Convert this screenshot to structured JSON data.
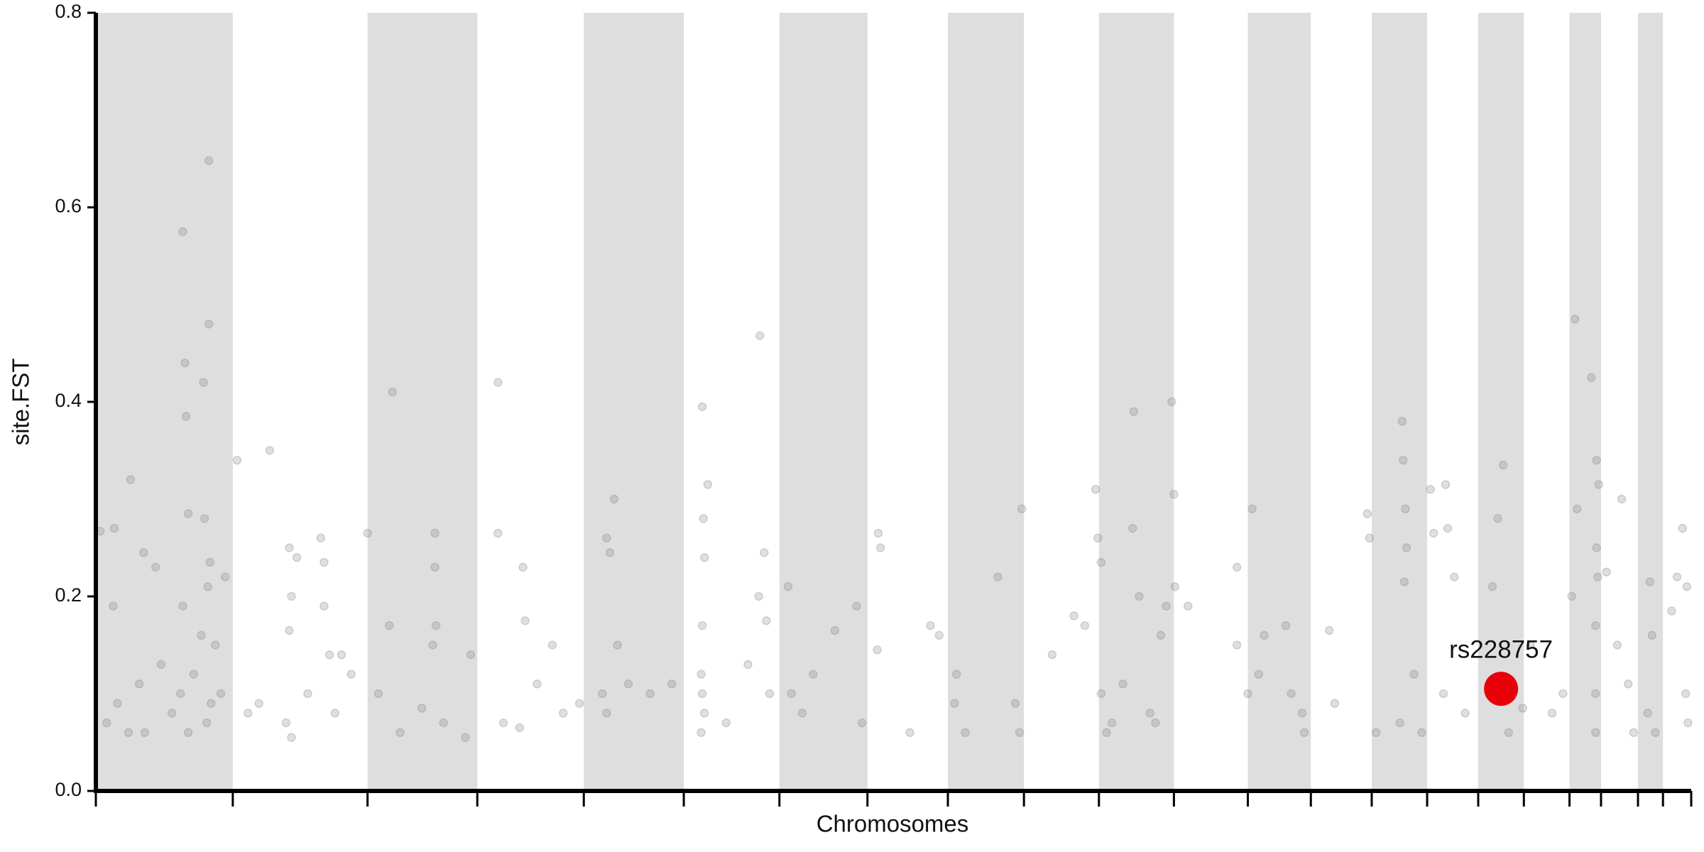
{
  "chart_data": {
    "type": "scatter",
    "xlabel": "Chromosomes",
    "ylabel": "site.FST",
    "xlim": [
      0,
      1468
    ],
    "ylim": [
      0,
      0.8
    ],
    "yticks": [
      {
        "value": 0,
        "label": "0.0"
      },
      0.2,
      0.4,
      0.6,
      0.8
    ],
    "chromosome_bounds": [
      0,
      126,
      250,
      351,
      449,
      541,
      629,
      710,
      784,
      854,
      923,
      992,
      1060,
      1118,
      1174,
      1225,
      1272,
      1314,
      1356,
      1385,
      1419,
      1442,
      1468
    ],
    "band_color": "#dedede",
    "series": [
      {
        "color": "#808080",
        "x": [
          4,
          16,
          17,
          32,
          44,
          55,
          80,
          82,
          83,
          85,
          99,
          100,
          104,
          104,
          105,
          103,
          97,
          80,
          119,
          10,
          20,
          30,
          40,
          45,
          60,
          70,
          78,
          85,
          90,
          102,
          106,
          110,
          115,
          130,
          160,
          178,
          180,
          185,
          178,
          207,
          210,
          210,
          215,
          226,
          140,
          150,
          175,
          180,
          195,
          220,
          235,
          250,
          270,
          273,
          312,
          312,
          313,
          310,
          320,
          345,
          260,
          280,
          300,
          340,
          370,
          370,
          393,
          395,
          406,
          375,
          390,
          420,
          430,
          445,
          470,
          473,
          477,
          480,
          466,
          470,
          490,
          510,
          530,
          558,
          559,
          560,
          563,
          558,
          557,
          558,
          560,
          557,
          580,
          611,
          615,
          617,
          610,
          620,
          600,
          637,
          640,
          650,
          660,
          680,
          700,
          720,
          722,
          719,
          705,
          749,
          768,
          776,
          790,
          792,
          800,
          830,
          852,
          846,
          850,
          880,
          900,
          910,
          920,
          922,
          925,
          925,
          930,
          935,
          945,
          954,
          955,
          960,
          980,
          985,
          990,
          992,
          993,
          970,
          975,
          1005,
          1050,
          1050,
          1060,
          1064,
          1070,
          1075,
          1095,
          1100,
          1110,
          1112,
          1135,
          1140,
          1170,
          1172,
          1178,
          1202,
          1203,
          1205,
          1206,
          1204,
          1213,
          1200,
          1220,
          1228,
          1231,
          1242,
          1244,
          1250,
          1240,
          1260,
          1285,
          1290,
          1295,
          1300,
          1313,
          1320,
          1340,
          1350,
          1361,
          1363,
          1376,
          1381,
          1383,
          1381,
          1382,
          1380,
          1380,
          1380,
          1358,
          1390,
          1404,
          1400,
          1410,
          1415,
          1430,
          1432,
          1428,
          1435,
          1450,
          1455,
          1460,
          1464,
          1463,
          1465
        ],
        "values": [
          0.267,
          0.19,
          0.27,
          0.32,
          0.245,
          0.23,
          0.575,
          0.44,
          0.385,
          0.285,
          0.42,
          0.28,
          0.648,
          0.48,
          0.235,
          0.21,
          0.16,
          0.19,
          0.22,
          0.07,
          0.09,
          0.06,
          0.11,
          0.06,
          0.13,
          0.08,
          0.1,
          0.06,
          0.12,
          0.07,
          0.09,
          0.15,
          0.1,
          0.34,
          0.35,
          0.25,
          0.2,
          0.24,
          0.165,
          0.26,
          0.19,
          0.235,
          0.14,
          0.14,
          0.08,
          0.09,
          0.07,
          0.055,
          0.1,
          0.08,
          0.12,
          0.265,
          0.17,
          0.41,
          0.265,
          0.23,
          0.17,
          0.15,
          0.07,
          0.14,
          0.1,
          0.06,
          0.085,
          0.055,
          0.42,
          0.265,
          0.23,
          0.175,
          0.11,
          0.07,
          0.065,
          0.15,
          0.08,
          0.09,
          0.26,
          0.245,
          0.3,
          0.15,
          0.1,
          0.08,
          0.11,
          0.1,
          0.11,
          0.395,
          0.28,
          0.24,
          0.315,
          0.17,
          0.12,
          0.1,
          0.08,
          0.06,
          0.07,
          0.468,
          0.245,
          0.175,
          0.2,
          0.1,
          0.13,
          0.21,
          0.1,
          0.08,
          0.12,
          0.165,
          0.19,
          0.265,
          0.25,
          0.145,
          0.07,
          0.06,
          0.17,
          0.16,
          0.09,
          0.12,
          0.06,
          0.22,
          0.29,
          0.09,
          0.06,
          0.14,
          0.18,
          0.17,
          0.31,
          0.26,
          0.235,
          0.1,
          0.06,
          0.07,
          0.11,
          0.27,
          0.39,
          0.2,
          0.16,
          0.19,
          0.4,
          0.305,
          0.21,
          0.08,
          0.07,
          0.19,
          0.23,
          0.15,
          0.1,
          0.29,
          0.12,
          0.16,
          0.17,
          0.1,
          0.08,
          0.06,
          0.165,
          0.09,
          0.285,
          0.26,
          0.06,
          0.38,
          0.34,
          0.29,
          0.25,
          0.215,
          0.12,
          0.07,
          0.06,
          0.31,
          0.265,
          0.315,
          0.27,
          0.22,
          0.1,
          0.08,
          0.21,
          0.28,
          0.335,
          0.06,
          0.085,
          0.15,
          0.08,
          0.1,
          0.485,
          0.29,
          0.425,
          0.34,
          0.315,
          0.25,
          0.22,
          0.17,
          0.1,
          0.06,
          0.2,
          0.225,
          0.3,
          0.15,
          0.11,
          0.06,
          0.215,
          0.16,
          0.08,
          0.06,
          0.185,
          0.22,
          0.27,
          0.21,
          0.1,
          0.07
        ]
      }
    ],
    "highlight": {
      "label": "rs228757",
      "x": 1293,
      "y": 0.105,
      "color": "#e8000b"
    }
  }
}
